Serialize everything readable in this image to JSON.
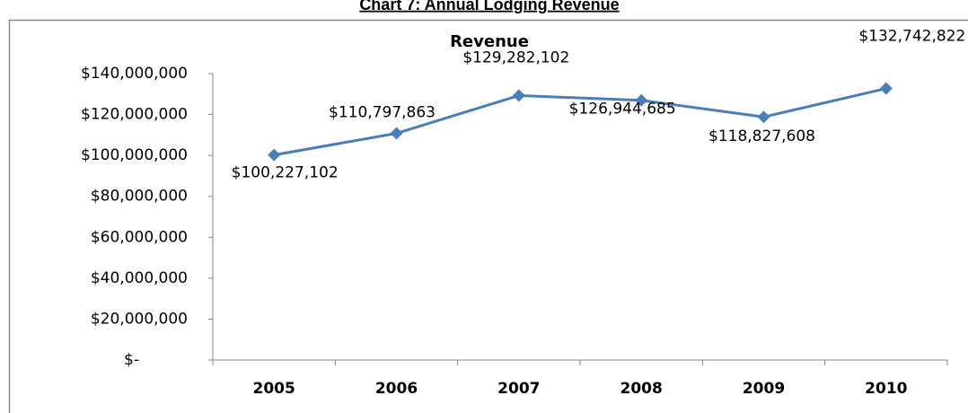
{
  "chart_data": {
    "type": "line",
    "document_title": "Chart 7: Annual Lodging Revenue",
    "title": "Revenue",
    "categories": [
      "2005",
      "2006",
      "2007",
      "2008",
      "2009",
      "2010"
    ],
    "series": [
      {
        "name": "Revenue",
        "color": "#4a7ebb",
        "values": [
          100227102,
          110797863,
          129282102,
          126944685,
          118827608,
          132742822
        ],
        "value_labels": [
          "$100,227,102",
          "$110,797,863",
          "$129,282,102",
          "$126,944,685",
          "$118,827,608",
          "$132,742,822"
        ]
      }
    ],
    "ylim": [
      0,
      140000000
    ],
    "yticks": [
      {
        "value": 0,
        "label": "$-"
      },
      {
        "value": 20000000,
        "label": "$20,000,000"
      },
      {
        "value": 40000000,
        "label": "$40,000,000"
      },
      {
        "value": 60000000,
        "label": "$60,000,000"
      },
      {
        "value": 80000000,
        "label": "$80,000,000"
      },
      {
        "value": 100000000,
        "label": "$100,000,000"
      },
      {
        "value": 120000000,
        "label": "$120,000,000"
      },
      {
        "value": 140000000,
        "label": "$140,000,000"
      }
    ],
    "grid": false
  }
}
